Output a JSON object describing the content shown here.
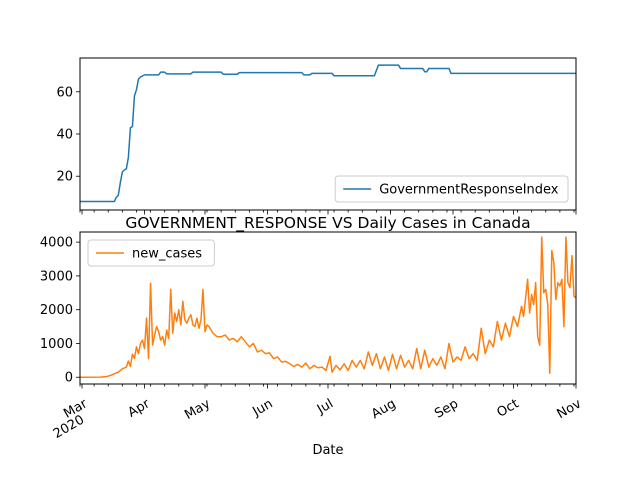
{
  "chart_data": [
    {
      "type": "line",
      "title": "",
      "xlabel": "",
      "ylabel": "",
      "x_range": [
        "2020-02-29",
        "2020-11-01"
      ],
      "ylim": [
        4,
        76
      ],
      "yticks": [
        20,
        40,
        60
      ],
      "legend_position": "lower-right",
      "series": [
        {
          "name": "GovernmentResponseIndex",
          "color": "#1f77b4",
          "points": [
            [
              "2020-02-29",
              8.0
            ],
            [
              "2020-03-17",
              8.0
            ],
            [
              "2020-03-18",
              10.0
            ],
            [
              "2020-03-19",
              11.0
            ],
            [
              "2020-03-20",
              17.0
            ],
            [
              "2020-03-21",
              22.0
            ],
            [
              "2020-03-22",
              23.0
            ],
            [
              "2020-03-23",
              23.5
            ],
            [
              "2020-03-24",
              29.0
            ],
            [
              "2020-03-25",
              43.0
            ],
            [
              "2020-03-26",
              43.5
            ],
            [
              "2020-03-27",
              58.0
            ],
            [
              "2020-03-28",
              61.0
            ],
            [
              "2020-03-29",
              66.0
            ],
            [
              "2020-03-30",
              67.0
            ],
            [
              "2020-04-01",
              68.0
            ],
            [
              "2020-04-08",
              68.0
            ],
            [
              "2020-04-09",
              69.3
            ],
            [
              "2020-04-11",
              69.3
            ],
            [
              "2020-04-12",
              68.5
            ],
            [
              "2020-04-24",
              68.5
            ],
            [
              "2020-04-25",
              69.3
            ],
            [
              "2020-05-09",
              69.3
            ],
            [
              "2020-05-10",
              68.3
            ],
            [
              "2020-05-17",
              68.3
            ],
            [
              "2020-05-18",
              69.1
            ],
            [
              "2020-06-18",
              69.1
            ],
            [
              "2020-06-19",
              68.0
            ],
            [
              "2020-06-22",
              68.0
            ],
            [
              "2020-06-23",
              68.7
            ],
            [
              "2020-07-03",
              68.7
            ],
            [
              "2020-07-04",
              67.6
            ],
            [
              "2020-07-24",
              67.6
            ],
            [
              "2020-07-26",
              72.6
            ],
            [
              "2020-08-05",
              72.6
            ],
            [
              "2020-08-06",
              71.0
            ],
            [
              "2020-08-17",
              71.0
            ],
            [
              "2020-08-18",
              69.5
            ],
            [
              "2020-08-19",
              69.5
            ],
            [
              "2020-08-20",
              71.0
            ],
            [
              "2020-08-30",
              71.0
            ],
            [
              "2020-08-31",
              68.7
            ],
            [
              "2020-11-01",
              68.7
            ]
          ]
        }
      ]
    },
    {
      "type": "line",
      "title": "GOVERNMENT_RESPONSE VS Daily Cases in Canada",
      "xlabel": "Date",
      "ylabel": "",
      "x_range": [
        "2020-02-29",
        "2020-11-01"
      ],
      "ylim": [
        -200,
        4300
      ],
      "yticks": [
        0,
        1000,
        2000,
        3000,
        4000
      ],
      "legend_position": "upper-left",
      "x_tick_labels": [
        {
          "date": "2020-03-01",
          "label": "Mar",
          "sublabel": "2020"
        },
        {
          "date": "2020-04-01",
          "label": "Apr"
        },
        {
          "date": "2020-05-01",
          "label": "May"
        },
        {
          "date": "2020-06-01",
          "label": "Jun"
        },
        {
          "date": "2020-07-01",
          "label": "Jul"
        },
        {
          "date": "2020-08-01",
          "label": "Aug"
        },
        {
          "date": "2020-09-01",
          "label": "Sep"
        },
        {
          "date": "2020-10-01",
          "label": "Oct"
        },
        {
          "date": "2020-11-01",
          "label": "Nov"
        }
      ],
      "series": [
        {
          "name": "new_cases",
          "color": "#ff7f0e",
          "points": [
            [
              "2020-02-29",
              0
            ],
            [
              "2020-03-10",
              5
            ],
            [
              "2020-03-13",
              20
            ],
            [
              "2020-03-15",
              50
            ],
            [
              "2020-03-17",
              100
            ],
            [
              "2020-03-19",
              150
            ],
            [
              "2020-03-21",
              250
            ],
            [
              "2020-03-23",
              300
            ],
            [
              "2020-03-24",
              480
            ],
            [
              "2020-03-25",
              320
            ],
            [
              "2020-03-26",
              680
            ],
            [
              "2020-03-27",
              560
            ],
            [
              "2020-03-28",
              900
            ],
            [
              "2020-03-29",
              700
            ],
            [
              "2020-03-30",
              1000
            ],
            [
              "2020-03-31",
              1100
            ],
            [
              "2020-04-01",
              850
            ],
            [
              "2020-04-02",
              1750
            ],
            [
              "2020-04-03",
              550
            ],
            [
              "2020-04-04",
              2780
            ],
            [
              "2020-04-05",
              950
            ],
            [
              "2020-04-06",
              1250
            ],
            [
              "2020-04-07",
              1500
            ],
            [
              "2020-04-08",
              1350
            ],
            [
              "2020-04-09",
              1100
            ],
            [
              "2020-04-10",
              1200
            ],
            [
              "2020-04-11",
              950
            ],
            [
              "2020-04-12",
              1400
            ],
            [
              "2020-04-13",
              1150
            ],
            [
              "2020-04-14",
              2600
            ],
            [
              "2020-04-15",
              1300
            ],
            [
              "2020-04-16",
              1900
            ],
            [
              "2020-04-17",
              1650
            ],
            [
              "2020-04-18",
              2000
            ],
            [
              "2020-04-19",
              1550
            ],
            [
              "2020-04-20",
              2250
            ],
            [
              "2020-04-21",
              1700
            ],
            [
              "2020-04-22",
              1600
            ],
            [
              "2020-04-23",
              1750
            ],
            [
              "2020-04-24",
              1850
            ],
            [
              "2020-04-25",
              1550
            ],
            [
              "2020-04-26",
              1500
            ],
            [
              "2020-04-27",
              1750
            ],
            [
              "2020-04-28",
              1450
            ],
            [
              "2020-04-29",
              1700
            ],
            [
              "2020-04-30",
              2600
            ],
            [
              "2020-05-01",
              1350
            ],
            [
              "2020-05-02",
              1550
            ],
            [
              "2020-05-03",
              1500
            ],
            [
              "2020-05-05",
              1300
            ],
            [
              "2020-05-07",
              1200
            ],
            [
              "2020-05-09",
              1200
            ],
            [
              "2020-05-11",
              1250
            ],
            [
              "2020-05-13",
              1100
            ],
            [
              "2020-05-15",
              1150
            ],
            [
              "2020-05-17",
              1050
            ],
            [
              "2020-05-19",
              1200
            ],
            [
              "2020-05-21",
              1050
            ],
            [
              "2020-05-23",
              900
            ],
            [
              "2020-05-25",
              1000
            ],
            [
              "2020-05-27",
              750
            ],
            [
              "2020-05-29",
              800
            ],
            [
              "2020-05-31",
              700
            ],
            [
              "2020-06-02",
              720
            ],
            [
              "2020-06-04",
              550
            ],
            [
              "2020-06-06",
              600
            ],
            [
              "2020-06-08",
              450
            ],
            [
              "2020-06-10",
              470
            ],
            [
              "2020-06-12",
              400
            ],
            [
              "2020-06-14",
              320
            ],
            [
              "2020-06-16",
              380
            ],
            [
              "2020-06-18",
              300
            ],
            [
              "2020-06-20",
              420
            ],
            [
              "2020-06-22",
              250
            ],
            [
              "2020-06-24",
              350
            ],
            [
              "2020-06-26",
              280
            ],
            [
              "2020-06-28",
              300
            ],
            [
              "2020-06-30",
              200
            ],
            [
              "2020-07-02",
              620
            ],
            [
              "2020-07-03",
              150
            ],
            [
              "2020-07-05",
              350
            ],
            [
              "2020-07-07",
              220
            ],
            [
              "2020-07-09",
              400
            ],
            [
              "2020-07-11",
              200
            ],
            [
              "2020-07-13",
              500
            ],
            [
              "2020-07-15",
              300
            ],
            [
              "2020-07-17",
              500
            ],
            [
              "2020-07-19",
              250
            ],
            [
              "2020-07-21",
              750
            ],
            [
              "2020-07-23",
              350
            ],
            [
              "2020-07-25",
              700
            ],
            [
              "2020-07-27",
              250
            ],
            [
              "2020-07-29",
              600
            ],
            [
              "2020-07-31",
              200
            ],
            [
              "2020-08-02",
              680
            ],
            [
              "2020-08-04",
              250
            ],
            [
              "2020-08-06",
              650
            ],
            [
              "2020-08-08",
              300
            ],
            [
              "2020-08-10",
              500
            ],
            [
              "2020-08-12",
              250
            ],
            [
              "2020-08-14",
              850
            ],
            [
              "2020-08-16",
              250
            ],
            [
              "2020-08-18",
              800
            ],
            [
              "2020-08-20",
              300
            ],
            [
              "2020-08-22",
              550
            ],
            [
              "2020-08-24",
              350
            ],
            [
              "2020-08-26",
              600
            ],
            [
              "2020-08-28",
              250
            ],
            [
              "2020-08-30",
              1000
            ],
            [
              "2020-09-01",
              450
            ],
            [
              "2020-09-03",
              600
            ],
            [
              "2020-09-05",
              500
            ],
            [
              "2020-09-07",
              900
            ],
            [
              "2020-09-09",
              550
            ],
            [
              "2020-09-11",
              700
            ],
            [
              "2020-09-13",
              500
            ],
            [
              "2020-09-15",
              1450
            ],
            [
              "2020-09-17",
              700
            ],
            [
              "2020-09-19",
              1100
            ],
            [
              "2020-09-21",
              900
            ],
            [
              "2020-09-23",
              1650
            ],
            [
              "2020-09-25",
              1100
            ],
            [
              "2020-09-27",
              1600
            ],
            [
              "2020-09-29",
              1200
            ],
            [
              "2020-10-01",
              1800
            ],
            [
              "2020-10-03",
              1500
            ],
            [
              "2020-10-05",
              2100
            ],
            [
              "2020-10-06",
              1800
            ],
            [
              "2020-10-08",
              2900
            ],
            [
              "2020-10-09",
              1900
            ],
            [
              "2020-10-10",
              2450
            ],
            [
              "2020-10-11",
              2150
            ],
            [
              "2020-10-12",
              2800
            ],
            [
              "2020-10-13",
              1200
            ],
            [
              "2020-10-14",
              950
            ],
            [
              "2020-10-15",
              4150
            ],
            [
              "2020-10-16",
              2500
            ],
            [
              "2020-10-17",
              2600
            ],
            [
              "2020-10-18",
              2150
            ],
            [
              "2020-10-19",
              120
            ],
            [
              "2020-10-20",
              3750
            ],
            [
              "2020-10-21",
              3400
            ],
            [
              "2020-10-22",
              2300
            ],
            [
              "2020-10-23",
              2800
            ],
            [
              "2020-10-24",
              2700
            ],
            [
              "2020-10-25",
              2900
            ],
            [
              "2020-10-26",
              1500
            ],
            [
              "2020-10-27",
              4150
            ],
            [
              "2020-10-28",
              2800
            ],
            [
              "2020-10-29",
              2650
            ],
            [
              "2020-10-30",
              3600
            ],
            [
              "2020-10-31",
              2400
            ],
            [
              "2020-11-01",
              2350
            ]
          ]
        }
      ]
    }
  ]
}
